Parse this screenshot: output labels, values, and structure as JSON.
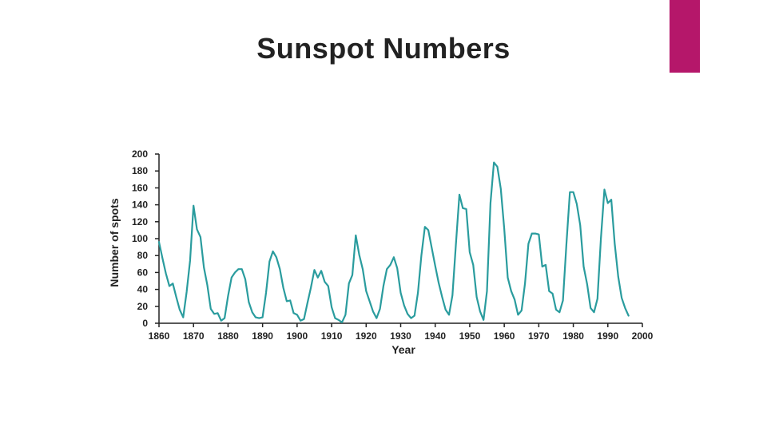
{
  "slide": {
    "title": "Sunspot Numbers",
    "accent_color": "#B5176A"
  },
  "chart_data": {
    "type": "line",
    "title": "",
    "xlabel": "Year",
    "ylabel": "Number of spots",
    "xlim": [
      1860,
      2000
    ],
    "ylim": [
      0,
      200
    ],
    "x_ticks": [
      1860,
      1870,
      1880,
      1890,
      1900,
      1910,
      1920,
      1930,
      1940,
      1950,
      1960,
      1970,
      1980,
      1990,
      2000
    ],
    "y_ticks": [
      0,
      20,
      40,
      60,
      80,
      100,
      120,
      140,
      160,
      180,
      200
    ],
    "grid": false,
    "line_color": "#2A9C9E",
    "series": [
      {
        "x": [
          1860,
          1861,
          1862,
          1863,
          1864,
          1865,
          1866,
          1867,
          1868,
          1869,
          1870,
          1871,
          1872,
          1873,
          1874,
          1875,
          1876,
          1877,
          1878,
          1879,
          1880,
          1881,
          1882,
          1883,
          1884,
          1885,
          1886,
          1887,
          1888,
          1889,
          1890,
          1891,
          1892,
          1893,
          1894,
          1895,
          1896,
          1897,
          1898,
          1899,
          1900,
          1901,
          1902,
          1903,
          1904,
          1905,
          1906,
          1907,
          1908,
          1909,
          1910,
          1911,
          1912,
          1913,
          1914,
          1915,
          1916,
          1917,
          1918,
          1919,
          1920,
          1921,
          1922,
          1923,
          1924,
          1925,
          1926,
          1927,
          1928,
          1929,
          1930,
          1931,
          1932,
          1933,
          1934,
          1935,
          1936,
          1937,
          1938,
          1939,
          1940,
          1941,
          1942,
          1943,
          1944,
          1945,
          1946,
          1947,
          1948,
          1949,
          1950,
          1951,
          1952,
          1953,
          1954,
          1955,
          1956,
          1957,
          1958,
          1959,
          1960,
          1961,
          1962,
          1963,
          1964,
          1965,
          1966,
          1967,
          1968,
          1969,
          1970,
          1971,
          1972,
          1973,
          1974,
          1975,
          1976,
          1977,
          1978,
          1979,
          1980,
          1981,
          1982,
          1983,
          1984,
          1985,
          1986,
          1987,
          1988,
          1989,
          1990,
          1991,
          1992,
          1993,
          1994,
          1995,
          1996
        ],
        "values": [
          96,
          77,
          59,
          44,
          47,
          31,
          16,
          7,
          37,
          74,
          139,
          111,
          102,
          66,
          45,
          17,
          11,
          12,
          3,
          6,
          32,
          54,
          60,
          64,
          64,
          52,
          25,
          13,
          7,
          6,
          7,
          36,
          73,
          85,
          78,
          64,
          42,
          26,
          27,
          12,
          10,
          3,
          5,
          24,
          42,
          63,
          54,
          62,
          49,
          44,
          19,
          6,
          4,
          1,
          10,
          47,
          57,
          104,
          81,
          64,
          38,
          26,
          14,
          6,
          17,
          44,
          64,
          69,
          78,
          65,
          36,
          21,
          11,
          6,
          9,
          36,
          80,
          114,
          110,
          89,
          68,
          48,
          31,
          16,
          10,
          33,
          93,
          152,
          136,
          135,
          84,
          69,
          31,
          14,
          4,
          38,
          142,
          190,
          185,
          159,
          112,
          54,
          38,
          28,
          10,
          15,
          47,
          94,
          106,
          106,
          105,
          67,
          69,
          38,
          35,
          16,
          13,
          27,
          93,
          155,
          155,
          141,
          116,
          67,
          46,
          18,
          13,
          29,
          100,
          158,
          142,
          146,
          94,
          55,
          30,
          18,
          9
        ]
      }
    ]
  }
}
